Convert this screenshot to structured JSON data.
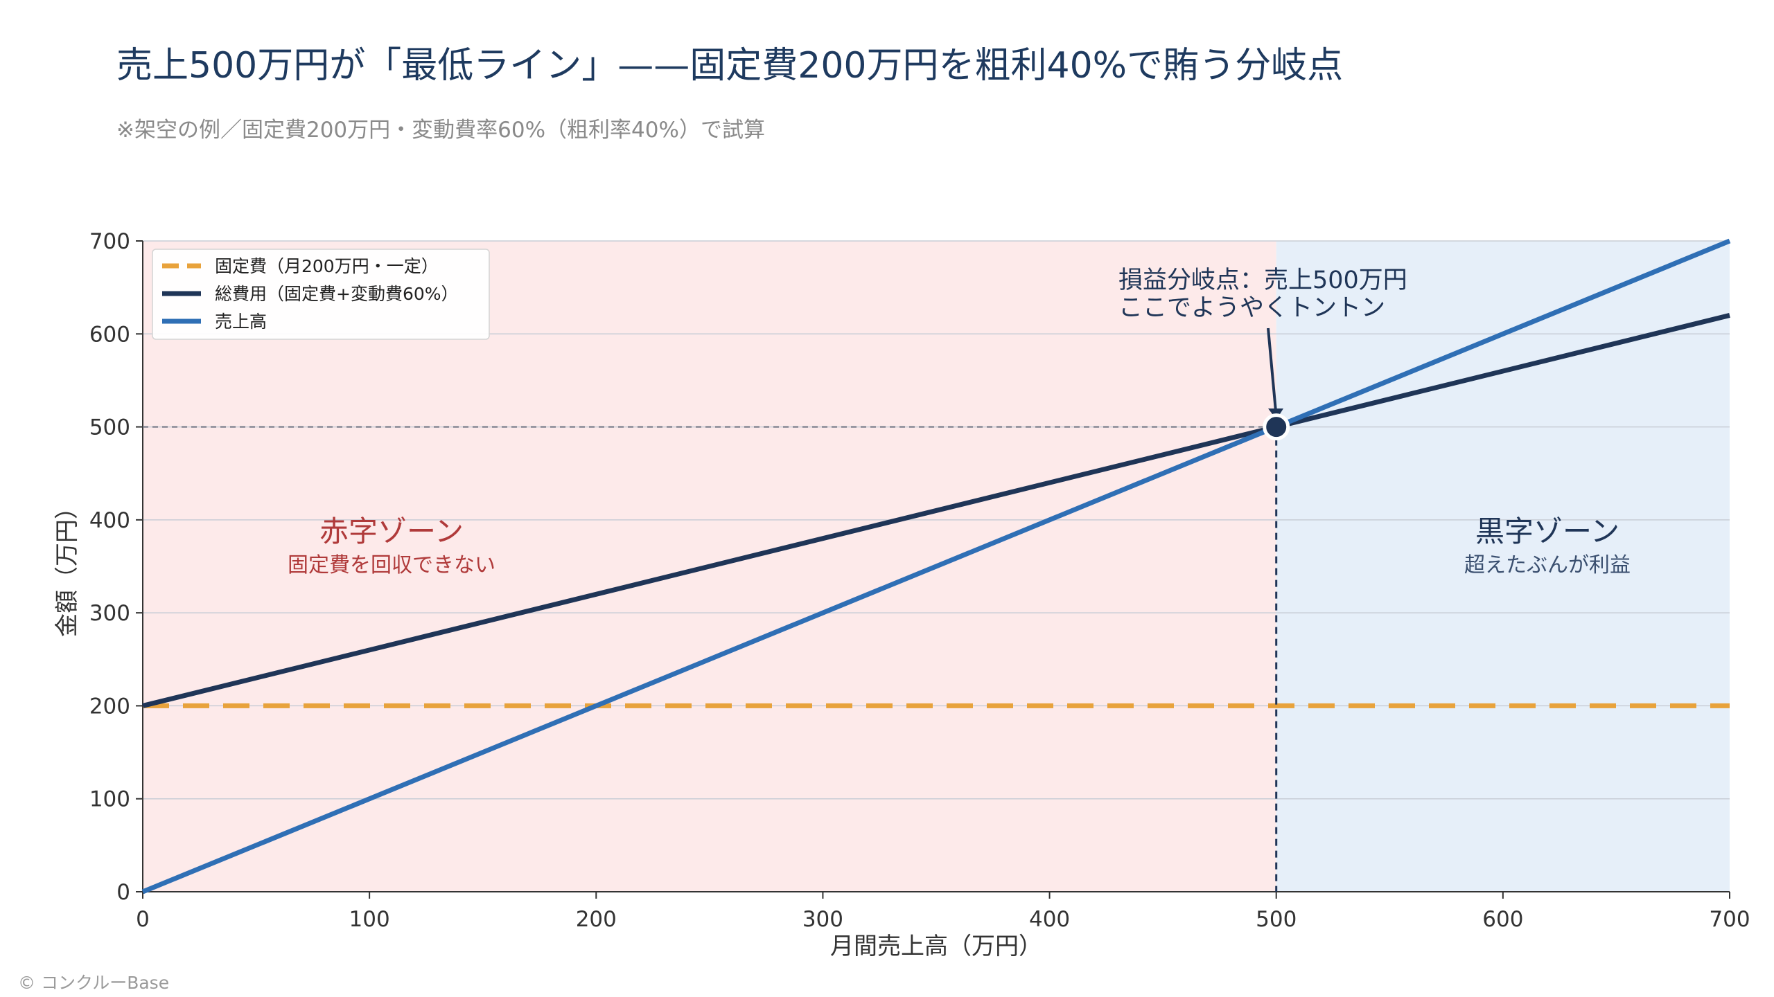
{
  "title": "売上500万円が「最低ライン」——固定費200万円を粗利40%で賄う分岐点",
  "subtitle": "※架空の例／固定費200万円・変動費率60%（粗利率40%）で試算",
  "copyright": "© コンクルーBase",
  "colors": {
    "loss_zone": "#fdeaea",
    "profit_zone": "#e6eff9",
    "fixed_cost": "#e8a23b",
    "total_cost": "#1f3557",
    "sales": "#2f6fb5",
    "loss_text": "#b03a3a",
    "profit_text": "#1f3557",
    "grid": "#c8cdd6"
  },
  "chart_data": {
    "type": "line",
    "xlabel": "月間売上高（万円）",
    "ylabel": "金額（万円）",
    "xlim": [
      0,
      700
    ],
    "ylim": [
      0,
      700
    ],
    "xticks": [
      0,
      100,
      200,
      300,
      400,
      500,
      600,
      700
    ],
    "yticks": [
      0,
      100,
      200,
      300,
      400,
      500,
      600,
      700
    ],
    "grid": "horizontal",
    "legend_position": "top-left",
    "series": [
      {
        "name": "固定費（月200万円・一定）",
        "style": "dashed",
        "color_key": "fixed_cost",
        "x": [
          0,
          700
        ],
        "y": [
          200,
          200
        ]
      },
      {
        "name": "総費用（固定費+変動費60%）",
        "style": "solid",
        "color_key": "total_cost",
        "x": [
          0,
          700
        ],
        "y": [
          200,
          620
        ]
      },
      {
        "name": "売上高",
        "style": "solid",
        "color_key": "sales",
        "x": [
          0,
          700
        ],
        "y": [
          0,
          700
        ]
      }
    ],
    "break_even": {
      "x": 500,
      "y": 500
    },
    "annotation": {
      "line1": "損益分岐点：売上500万円",
      "line2": "ここでようやくトントン"
    },
    "zones": {
      "loss": {
        "title": "赤字ゾーン",
        "caption": "固定費を回収できない",
        "x_range": [
          0,
          500
        ]
      },
      "profit": {
        "title": "黒字ゾーン",
        "caption": "超えたぶんが利益",
        "x_range": [
          500,
          700
        ]
      }
    }
  }
}
